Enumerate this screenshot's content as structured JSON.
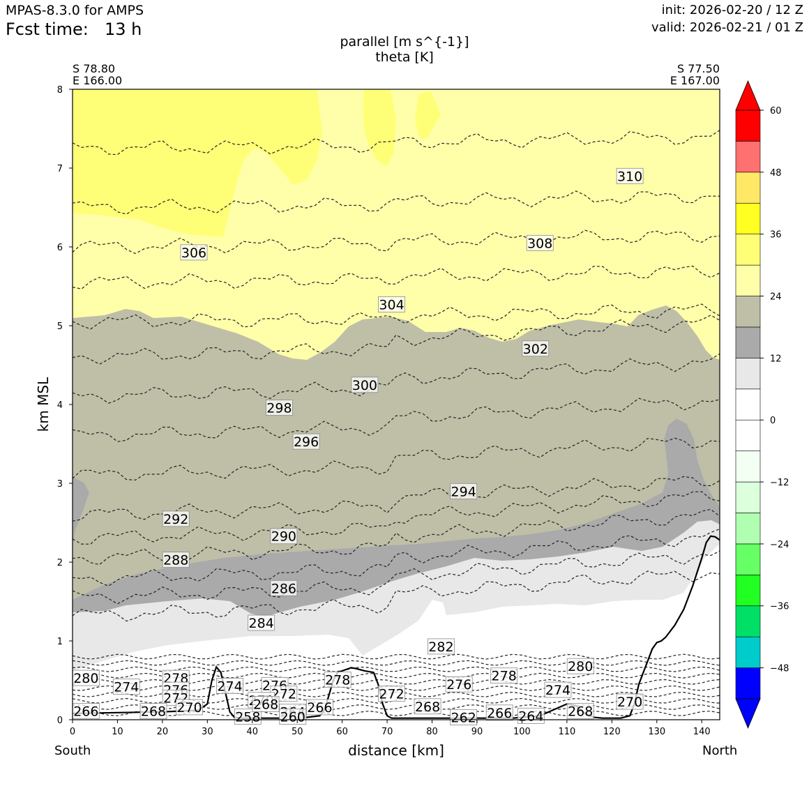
{
  "header": {
    "model": "MPAS-8.3.0 for AMPS",
    "fcst_label": "Fcst time:",
    "fcst_value": "13 h",
    "init": "init: 2026-02-20 / 12 Z",
    "valid": "valid: 2026-02-21 / 01 Z"
  },
  "chart_data": {
    "type": "cross-section contour",
    "title_line1": "parallel [m s^{-1}]",
    "title_line2": "theta [K]",
    "start_point": {
      "lat": "S 78.80",
      "lon": "E 166.00"
    },
    "end_point": {
      "lat": "S 77.50",
      "lon": "E 167.00"
    },
    "xlabel": "distance [km]",
    "ylabel": "km MSL",
    "x_end_left": "South",
    "x_end_right": "North",
    "xlim": [
      0,
      144
    ],
    "ylim": [
      0,
      8
    ],
    "x_ticks": [
      "0",
      "10",
      "20",
      "30",
      "40",
      "50",
      "60",
      "70",
      "80",
      "90",
      "100",
      "110",
      "120",
      "130",
      "140"
    ],
    "y_ticks": [
      "0",
      "1",
      "2",
      "3",
      "4",
      "5",
      "6",
      "7",
      "8"
    ],
    "colorbar": {
      "levels": [
        -54,
        -48,
        -42,
        -36,
        -30,
        -24,
        -18,
        -12,
        -6,
        0,
        6,
        12,
        18,
        24,
        30,
        36,
        42,
        48,
        54,
        60
      ],
      "tick_labels": [
        "60",
        "48",
        "36",
        "24",
        "12",
        "0",
        "−12",
        "−24",
        "−36",
        "−48"
      ],
      "tick_values": [
        60,
        48,
        36,
        24,
        12,
        0,
        -12,
        -24,
        -36,
        -48
      ],
      "colors_bottom_to_top": [
        "#0000ff",
        "#00cccc",
        "#00e066",
        "#22ff22",
        "#66ff66",
        "#b0ffb0",
        "#dcffdc",
        "#f2fff2",
        "#ffffff",
        "#ffffff",
        "#e8e8e8",
        "#aaaaaa",
        "#bfbfa8",
        "#ffffaa",
        "#ffff77",
        "#ffff22",
        "#ffe866",
        "#ff7070",
        "#ff0000"
      ],
      "extend": "both"
    },
    "shading_regions": [
      {
        "band": "24-30",
        "color": "#ffffaa",
        "km_range": [
          4.6,
          8
        ]
      },
      {
        "band": "30-36",
        "color": "#ffff77",
        "km_range": [
          6.2,
          8
        ],
        "x_range": [
          0,
          45
        ]
      },
      {
        "band": "18-24",
        "color": "#bfbfa8",
        "km_range": [
          1.7,
          5.2
        ]
      },
      {
        "band": "12-18",
        "color": "#aaaaaa",
        "km_range": [
          1.3,
          2.6
        ]
      },
      {
        "band": "6-12",
        "color": "#e8e8e8",
        "km_range": [
          0.9,
          1.9
        ]
      }
    ],
    "theta_contour_labels": [
      {
        "text": "310",
        "x": 124,
        "y": 6.9
      },
      {
        "text": "308",
        "x": 104,
        "y": 6.05
      },
      {
        "text": "306",
        "x": 27,
        "y": 5.93
      },
      {
        "text": "304",
        "x": 71,
        "y": 5.27
      },
      {
        "text": "302",
        "x": 103,
        "y": 4.71
      },
      {
        "text": "300",
        "x": 65,
        "y": 4.25
      },
      {
        "text": "298",
        "x": 46,
        "y": 3.96
      },
      {
        "text": "296",
        "x": 52,
        "y": 3.53
      },
      {
        "text": "294",
        "x": 87,
        "y": 2.9
      },
      {
        "text": "292",
        "x": 23,
        "y": 2.55
      },
      {
        "text": "290",
        "x": 47,
        "y": 2.33
      },
      {
        "text": "288",
        "x": 23,
        "y": 2.03
      },
      {
        "text": "286",
        "x": 47,
        "y": 1.67
      },
      {
        "text": "284",
        "x": 42,
        "y": 1.23
      },
      {
        "text": "282",
        "x": 82,
        "y": 0.93
      },
      {
        "text": "280",
        "x": 3,
        "y": 0.53
      },
      {
        "text": "280",
        "x": 113,
        "y": 0.68
      },
      {
        "text": "278",
        "x": 23,
        "y": 0.53
      },
      {
        "text": "278",
        "x": 59,
        "y": 0.51
      },
      {
        "text": "278",
        "x": 96,
        "y": 0.56
      },
      {
        "text": "276",
        "x": 23,
        "y": 0.38
      },
      {
        "text": "276",
        "x": 45,
        "y": 0.44
      },
      {
        "text": "276",
        "x": 86,
        "y": 0.45
      },
      {
        "text": "274",
        "x": 12,
        "y": 0.42
      },
      {
        "text": "274",
        "x": 35,
        "y": 0.43
      },
      {
        "text": "274",
        "x": 108,
        "y": 0.38
      },
      {
        "text": "272",
        "x": 23,
        "y": 0.28
      },
      {
        "text": "272",
        "x": 47,
        "y": 0.33
      },
      {
        "text": "272",
        "x": 71,
        "y": 0.33
      },
      {
        "text": "270",
        "x": 26,
        "y": 0.16
      },
      {
        "text": "270",
        "x": 42,
        "y": 0.25
      },
      {
        "text": "270",
        "x": 124,
        "y": 0.23
      },
      {
        "text": "268",
        "x": 18,
        "y": 0.11
      },
      {
        "text": "268",
        "x": 79,
        "y": 0.17
      },
      {
        "text": "268",
        "x": 113,
        "y": 0.11
      },
      {
        "text": "266",
        "x": 3,
        "y": 0.11
      },
      {
        "text": "266",
        "x": 55,
        "y": 0.16
      },
      {
        "text": "266",
        "x": 95,
        "y": 0.09
      },
      {
        "text": "264",
        "x": 49,
        "y": 0.1
      },
      {
        "text": "264",
        "x": 102,
        "y": 0.05
      },
      {
        "text": "262",
        "x": 87,
        "y": 0.03
      },
      {
        "text": "260",
        "x": 49,
        "y": 0.04
      },
      {
        "text": "258",
        "x": 39,
        "y": 0.04
      },
      {
        "text": "268",
        "x": 43,
        "y": 0.2
      }
    ],
    "terrain_profile": {
      "x": [
        0,
        10,
        20,
        28,
        30,
        31,
        32,
        33,
        34,
        35,
        36,
        38,
        42,
        48,
        52,
        55,
        56,
        57,
        58,
        59,
        60,
        61,
        62,
        63,
        65,
        67,
        68,
        69,
        70,
        71,
        72,
        74,
        80,
        90,
        98,
        104,
        108,
        110,
        112,
        114,
        116,
        118,
        122,
        124,
        125,
        126,
        128,
        129,
        130,
        131,
        132,
        134,
        136,
        138,
        140,
        141,
        142,
        143,
        144
      ],
      "y": [
        0.08,
        0.09,
        0.1,
        0.12,
        0.2,
        0.5,
        0.67,
        0.6,
        0.35,
        0.1,
        0.03,
        0.02,
        0.02,
        0.02,
        0.03,
        0.05,
        0.12,
        0.3,
        0.5,
        0.6,
        0.62,
        0.64,
        0.66,
        0.65,
        0.62,
        0.6,
        0.45,
        0.2,
        0.05,
        0.02,
        0.02,
        0.02,
        0.02,
        0.02,
        0.02,
        0.05,
        0.15,
        0.2,
        0.18,
        0.08,
        0.03,
        0.02,
        0.02,
        0.05,
        0.2,
        0.45,
        0.75,
        0.9,
        0.98,
        1.0,
        1.05,
        1.2,
        1.4,
        1.7,
        2.05,
        2.25,
        2.33,
        2.32,
        2.28
      ]
    }
  }
}
